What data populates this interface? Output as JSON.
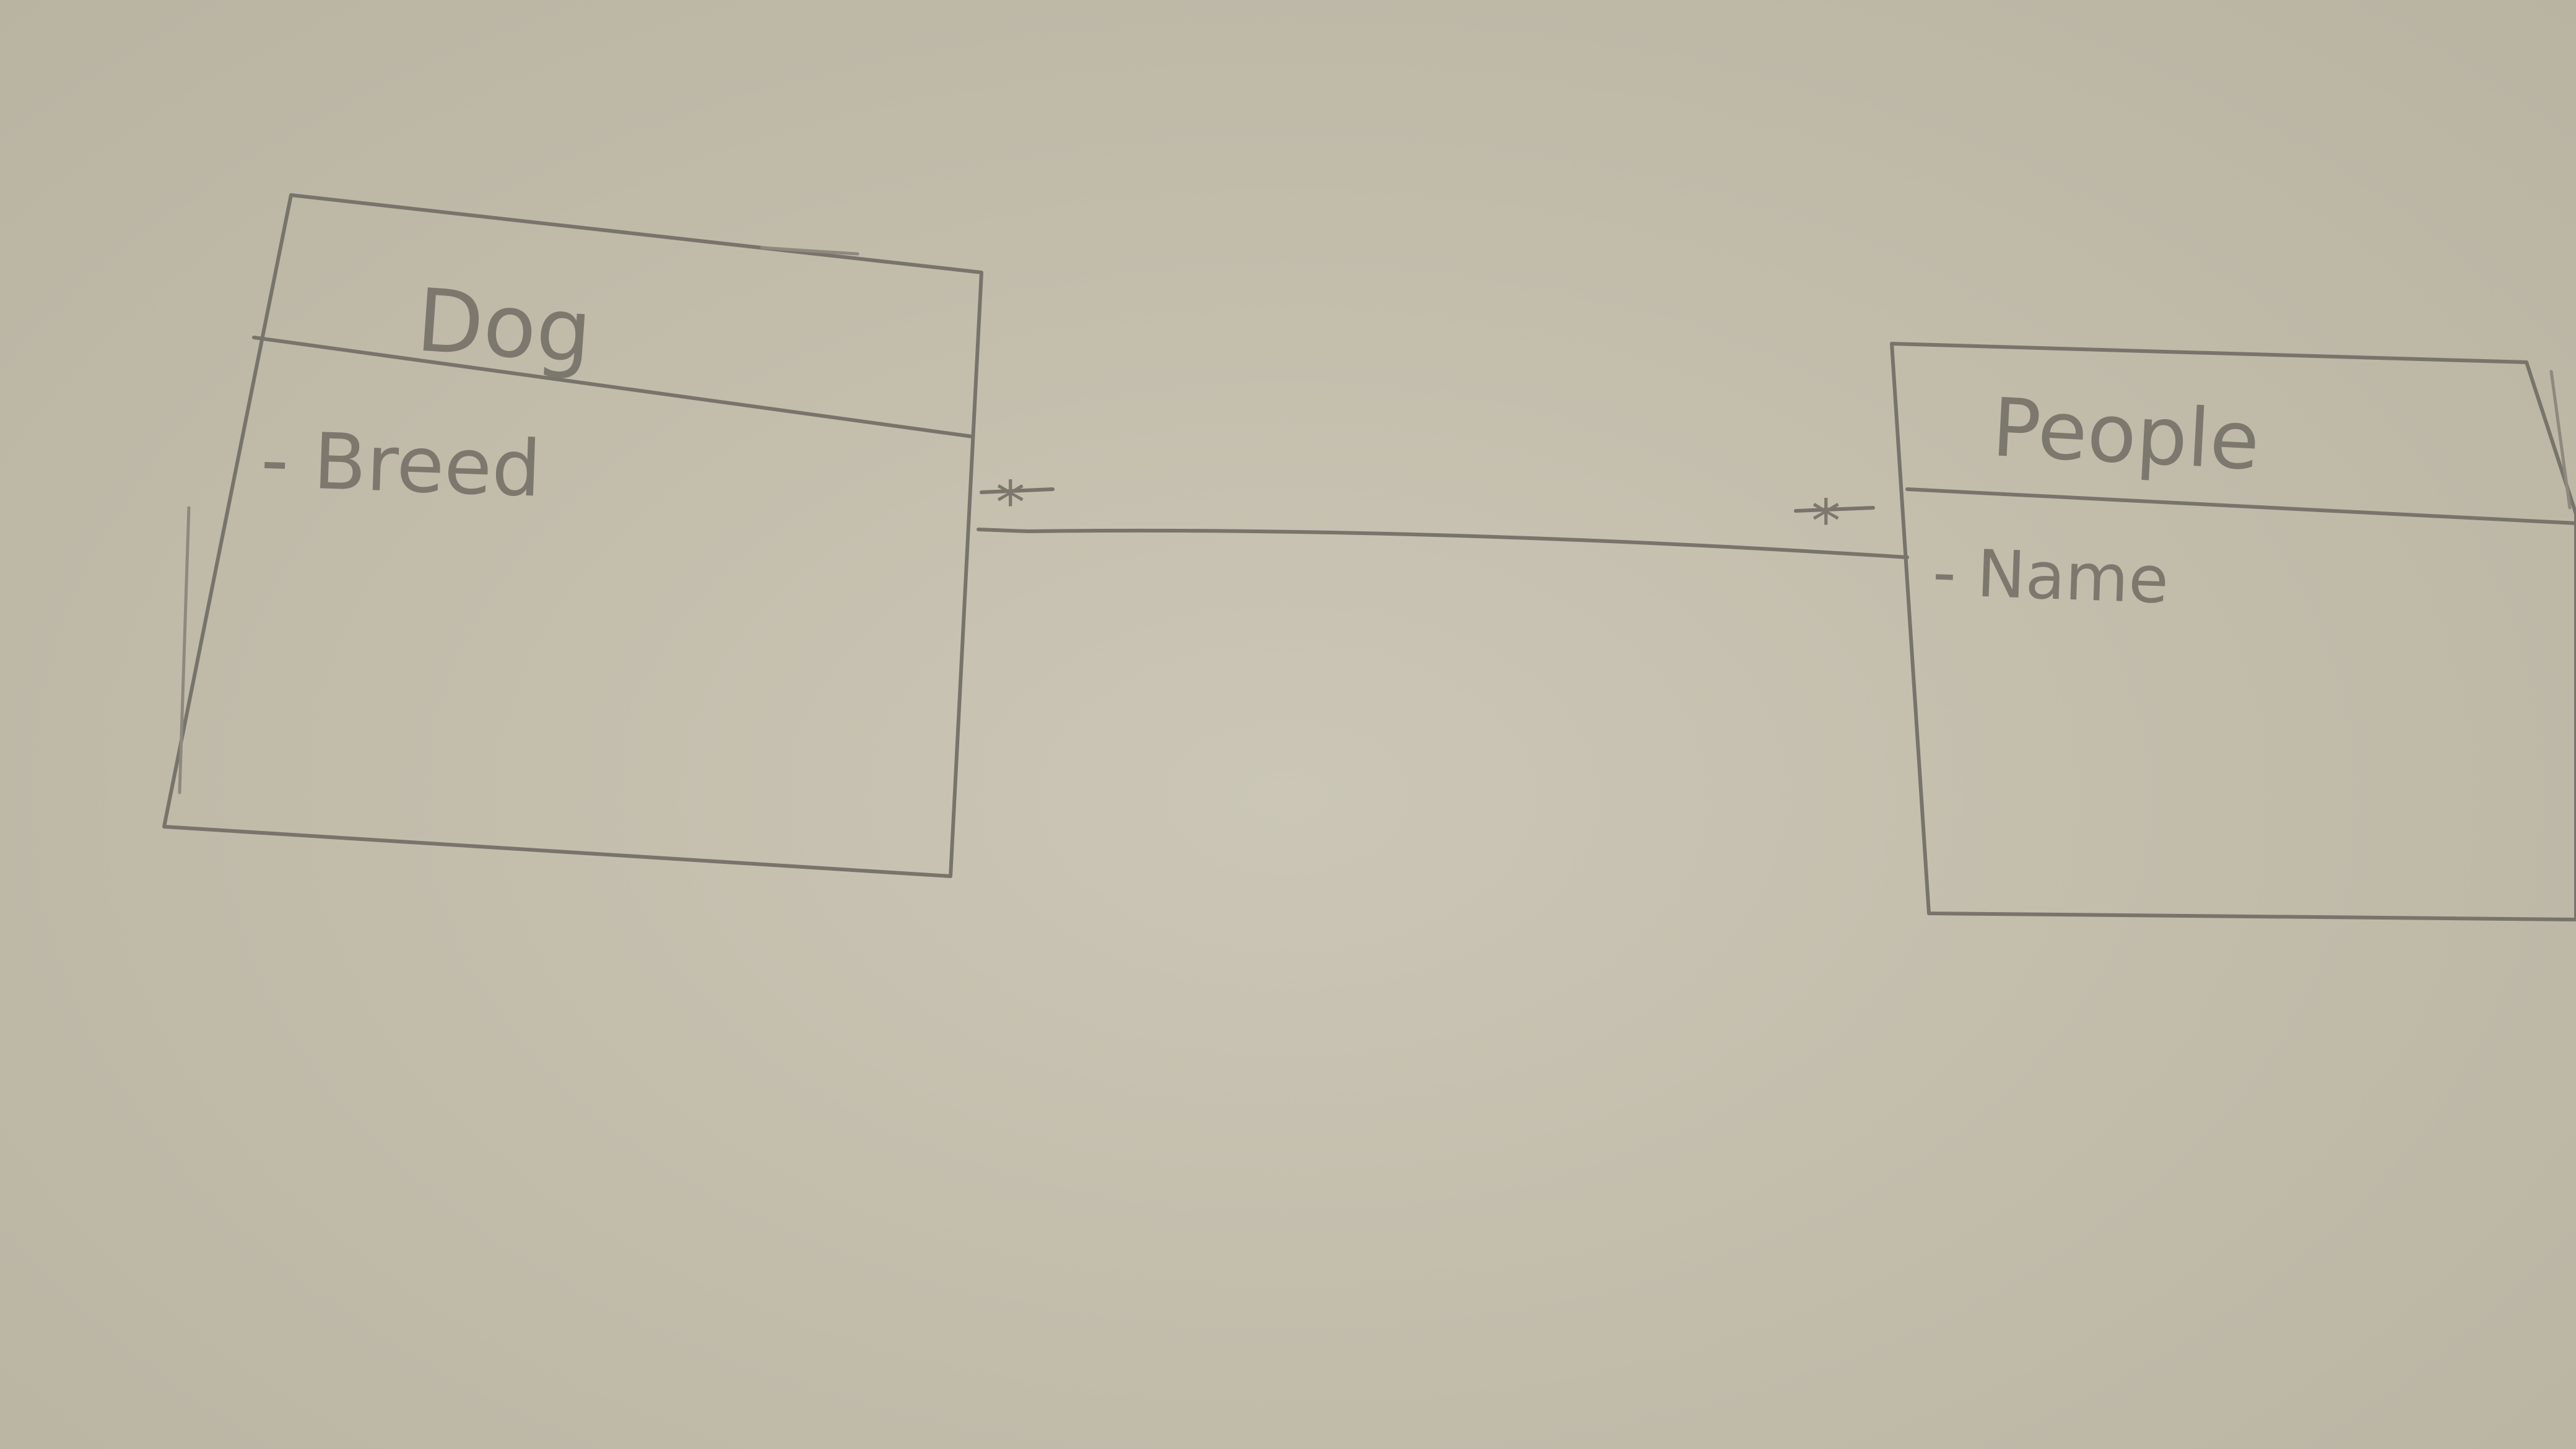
{
  "entities": [
    {
      "name": "Dog",
      "attributes": [
        "- Breed"
      ]
    },
    {
      "name": "People",
      "attributes": [
        "- Name"
      ]
    }
  ],
  "relationship": {
    "from": "Dog",
    "to": "People",
    "from_multiplicity": "*",
    "to_multiplicity": "*"
  }
}
